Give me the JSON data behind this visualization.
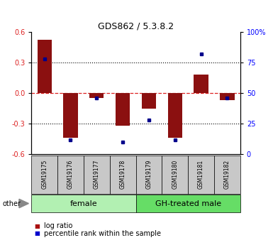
{
  "title": "GDS862 / 5.3.8.2",
  "samples": [
    "GSM19175",
    "GSM19176",
    "GSM19177",
    "GSM19178",
    "GSM19179",
    "GSM19180",
    "GSM19181",
    "GSM19182"
  ],
  "log_ratio": [
    0.52,
    -0.44,
    -0.05,
    -0.32,
    -0.15,
    -0.44,
    0.18,
    -0.07
  ],
  "percentile_rank": [
    0.78,
    0.12,
    0.46,
    0.1,
    0.28,
    0.12,
    0.82,
    0.46
  ],
  "groups": [
    {
      "label": "female",
      "start": 0,
      "end": 4,
      "color": "#b2f0b2"
    },
    {
      "label": "GH-treated male",
      "start": 4,
      "end": 8,
      "color": "#66dd66"
    }
  ],
  "ylim": [
    -0.6,
    0.6
  ],
  "yticks_left": [
    -0.6,
    -0.3,
    0.0,
    0.3,
    0.6
  ],
  "yticks_right_vals": [
    0,
    25,
    50,
    75,
    100
  ],
  "yticks_right_labels": [
    "0",
    "25",
    "50",
    "75",
    "100%"
  ],
  "bar_color": "#8B1010",
  "dot_color": "#00008B",
  "hline_color": "#DD2222",
  "dot_color_legend": "#0000CC",
  "bar_color_legend": "#AA1111",
  "other_label": "other",
  "legend_items": [
    "log ratio",
    "percentile rank within the sample"
  ],
  "title_fontsize": 9,
  "tick_fontsize": 7,
  "sample_fontsize": 5.5,
  "group_fontsize": 8,
  "legend_fontsize": 7
}
